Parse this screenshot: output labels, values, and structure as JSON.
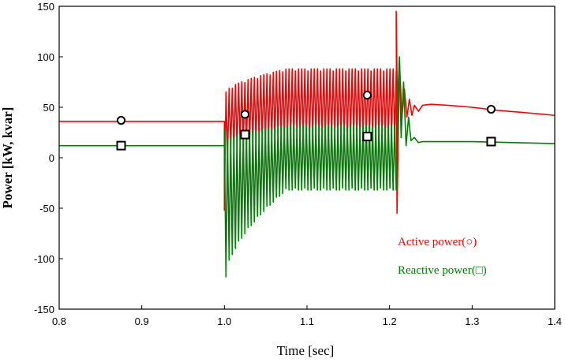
{
  "chart_data": {
    "type": "line",
    "title": "",
    "xlabel": "Time [sec]",
    "ylabel": "Power [kW, kvar]",
    "xlim": [
      0.8,
      1.4
    ],
    "ylim": [
      -150,
      150
    ],
    "x_ticks": [
      0.8,
      0.9,
      1.0,
      1.1,
      1.2,
      1.3,
      1.4
    ],
    "y_ticks": [
      -150,
      -100,
      -50,
      0,
      50,
      100,
      150
    ],
    "grid": false,
    "legend_position": "right",
    "series": [
      {
        "name": "Active power(○)",
        "color": "#ff0000",
        "marker": "circle",
        "markers": [
          [
            0.875,
            37
          ],
          [
            1.025,
            43
          ],
          [
            1.173,
            62
          ],
          [
            1.323,
            48
          ]
        ],
        "segments": [
          {
            "kind": "flat",
            "x": [
              0.8,
              1.0
            ],
            "y": 36
          },
          {
            "kind": "oscillation",
            "x": [
              1.0,
              1.21
            ],
            "start_y": -52,
            "low": [
              3,
              20
            ],
            "high": [
              65,
              88
            ],
            "cycles": 55
          },
          {
            "kind": "points",
            "points": [
              [
                1.208,
                145
              ],
              [
                1.209,
                -55
              ],
              [
                1.212,
                95
              ],
              [
                1.215,
                40
              ],
              [
                1.218,
                68
              ],
              [
                1.221,
                40
              ],
              [
                1.224,
                58
              ],
              [
                1.227,
                42
              ],
              [
                1.23,
                52
              ],
              [
                1.235,
                46
              ],
              [
                1.24,
                52
              ],
              [
                1.25,
                53
              ],
              [
                1.27,
                52
              ],
              [
                1.3,
                50
              ],
              [
                1.33,
                47
              ],
              [
                1.36,
                45
              ],
              [
                1.4,
                42
              ]
            ]
          }
        ]
      },
      {
        "name": "Reactive power(□)",
        "color": "#008000",
        "marker": "square",
        "markers": [
          [
            0.875,
            12
          ],
          [
            1.025,
            23
          ],
          [
            1.173,
            21
          ],
          [
            1.323,
            16
          ]
        ],
        "segments": [
          {
            "kind": "flat",
            "x": [
              0.8,
              1.0
            ],
            "y": 12
          },
          {
            "kind": "oscillation",
            "x": [
              1.0,
              1.21
            ],
            "start_y": 28,
            "low": [
              -118,
              -32
            ],
            "high": [
              18,
              32
            ],
            "cycles": 55
          },
          {
            "kind": "points",
            "points": [
              [
                1.21,
                62
              ],
              [
                1.212,
                100
              ],
              [
                1.214,
                20
              ],
              [
                1.217,
                75
              ],
              [
                1.22,
                12
              ],
              [
                1.223,
                40
              ],
              [
                1.226,
                17
              ],
              [
                1.23,
                20
              ],
              [
                1.235,
                15
              ],
              [
                1.24,
                16
              ],
              [
                1.26,
                16
              ],
              [
                1.3,
                16
              ],
              [
                1.35,
                15
              ],
              [
                1.4,
                14
              ]
            ]
          }
        ]
      }
    ]
  }
}
